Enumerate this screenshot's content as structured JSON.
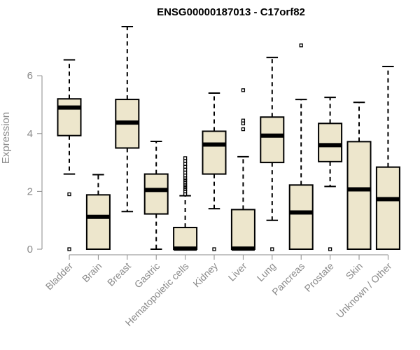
{
  "chart_data": {
    "type": "boxplot",
    "title": "ENSG00000187013 - C17orf82",
    "xlabel": "",
    "ylabel": "Expression",
    "ylim": [
      0,
      7.8
    ],
    "yticks": [
      0,
      2,
      4,
      6
    ],
    "box_fill": "#ede6cc",
    "axis_color": "#8a8a8a",
    "categories": [
      "Bladder",
      "Brain",
      "Breast",
      "Gastric",
      "Hematopoietic cells",
      "Kidney",
      "Liver",
      "Lung",
      "Pancreas",
      "Prostate",
      "Skin",
      "Unknown / Other"
    ],
    "boxes": [
      {
        "label": "Bladder",
        "whislo": 2.6,
        "q1": 3.93,
        "med": 4.9,
        "q3": 5.2,
        "whishi": 6.55,
        "fliers": [
          1.9,
          0.0
        ]
      },
      {
        "label": "Brain",
        "whislo": 0.0,
        "q1": 0.0,
        "med": 1.12,
        "q3": 1.88,
        "whishi": 2.58,
        "fliers": []
      },
      {
        "label": "Breast",
        "whislo": 1.3,
        "q1": 3.5,
        "med": 4.38,
        "q3": 5.18,
        "whishi": 7.7,
        "fliers": []
      },
      {
        "label": "Gastric",
        "whislo": 0.0,
        "q1": 1.22,
        "med": 2.05,
        "q3": 2.6,
        "whishi": 3.73,
        "fliers": []
      },
      {
        "label": "Hematopoietic cells",
        "whislo": 0.0,
        "q1": 0.0,
        "med": 0.02,
        "q3": 0.75,
        "whishi": 1.85,
        "fliers": [
          1.9,
          2.0,
          2.08,
          2.15,
          2.22,
          2.3,
          2.38,
          2.45,
          2.55,
          2.65,
          2.75,
          2.85,
          2.95,
          3.05,
          3.15
        ]
      },
      {
        "label": "Kidney",
        "whislo": 1.4,
        "q1": 2.6,
        "med": 3.62,
        "q3": 4.08,
        "whishi": 5.4,
        "fliers": [
          0.0
        ]
      },
      {
        "label": "Liver",
        "whislo": 0.0,
        "q1": 0.0,
        "med": 0.02,
        "q3": 1.37,
        "whishi": 3.2,
        "fliers": [
          4.15,
          4.35,
          4.45,
          5.5
        ]
      },
      {
        "label": "Lung",
        "whislo": 1.0,
        "q1": 3.0,
        "med": 3.93,
        "q3": 4.57,
        "whishi": 6.63,
        "fliers": [
          0.0
        ]
      },
      {
        "label": "Pancreas",
        "whislo": 0.0,
        "q1": 0.0,
        "med": 1.27,
        "q3": 2.22,
        "whishi": 5.18,
        "fliers": [
          7.05
        ]
      },
      {
        "label": "Prostate",
        "whislo": 2.17,
        "q1": 3.03,
        "med": 3.6,
        "q3": 4.35,
        "whishi": 5.25,
        "fliers": [
          0.0
        ]
      },
      {
        "label": "Skin",
        "whislo": 0.0,
        "q1": 0.0,
        "med": 2.07,
        "q3": 3.72,
        "whishi": 5.08,
        "fliers": []
      },
      {
        "label": "Unknown / Other",
        "whislo": 0.0,
        "q1": 0.0,
        "med": 1.73,
        "q3": 2.84,
        "whishi": 6.32,
        "fliers": []
      }
    ]
  }
}
